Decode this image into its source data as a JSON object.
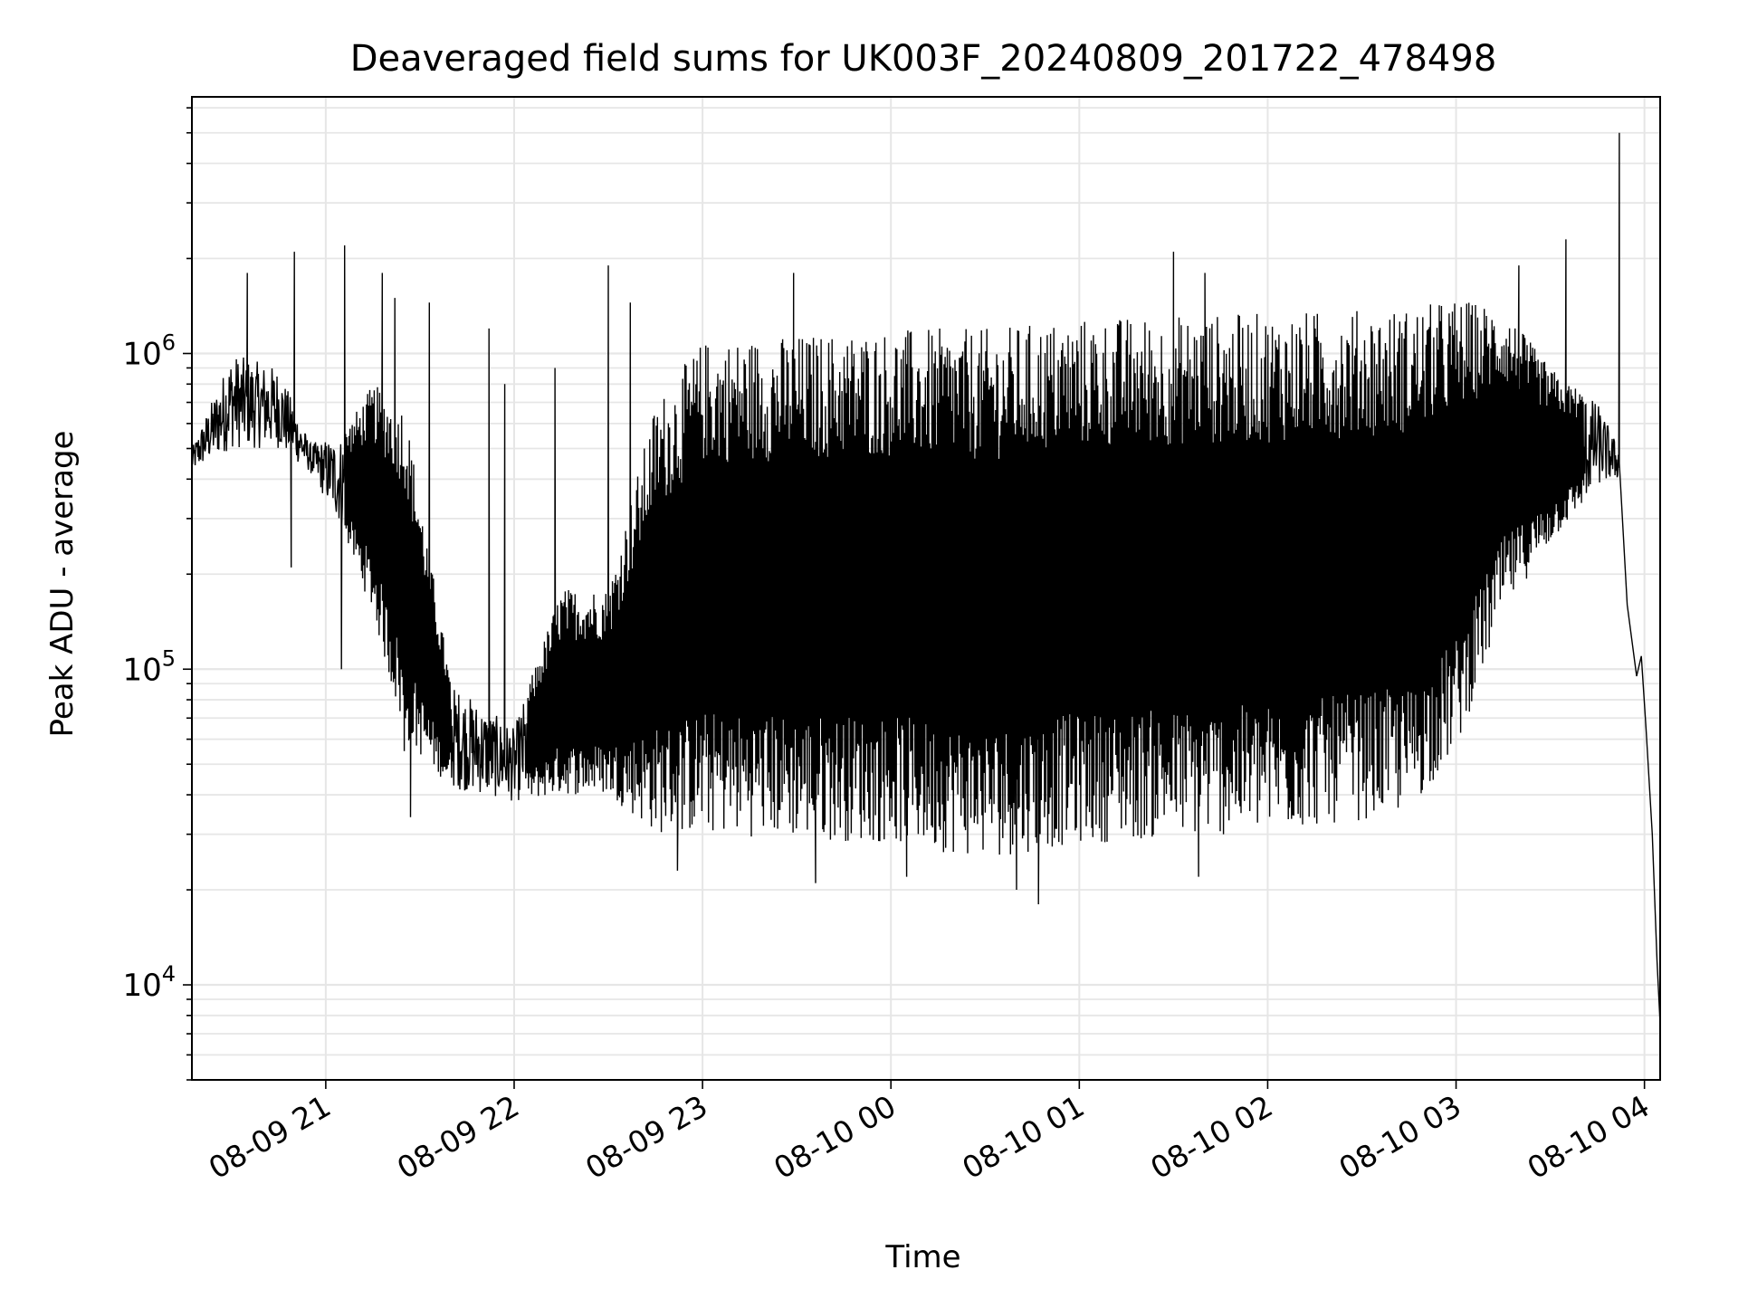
{
  "chart_data": {
    "type": "line",
    "title": "Deaveraged field sums for UK003F_20240809_201722_478498",
    "xlabel": "Time",
    "ylabel": "Peak ADU - average",
    "yscale": "log",
    "ylim": [
      5000,
      6500000
    ],
    "xlim": [
      "2024-08-09T20:17:22",
      "2024-08-10T04:05:00"
    ],
    "grid": true,
    "line_color": "#000000",
    "grid_color": "#e6e6e6",
    "x_ticks": [
      {
        "value": "2024-08-09T21:00:00",
        "label": "08-09 21"
      },
      {
        "value": "2024-08-09T22:00:00",
        "label": "08-09 22"
      },
      {
        "value": "2024-08-09T23:00:00",
        "label": "08-09 23"
      },
      {
        "value": "2024-08-10T00:00:00",
        "label": "08-10 00"
      },
      {
        "value": "2024-08-10T01:00:00",
        "label": "08-10 01"
      },
      {
        "value": "2024-08-10T02:00:00",
        "label": "08-10 02"
      },
      {
        "value": "2024-08-10T03:00:00",
        "label": "08-10 03"
      },
      {
        "value": "2024-08-10T04:00:00",
        "label": "08-10 04"
      }
    ],
    "y_ticks": [
      {
        "value": 10000,
        "base": "10",
        "exp": "4"
      },
      {
        "value": 100000,
        "base": "10",
        "exp": "5"
      },
      {
        "value": 1000000,
        "base": "10",
        "exp": "6"
      }
    ],
    "series": [
      {
        "color": "#000000",
        "envelope": [
          {
            "t": "2024-08-09T20:17:22",
            "low": 420000,
            "high": 500000
          },
          {
            "t": "2024-08-09T20:30:00",
            "low": 500000,
            "high": 1000000
          },
          {
            "t": "2024-08-09T20:45:00",
            "low": 500000,
            "high": 900000
          },
          {
            "t": "2024-08-09T20:55:00",
            "low": 420000,
            "high": 520000
          },
          {
            "t": "2024-08-09T21:05:00",
            "low": 280000,
            "high": 550000
          },
          {
            "t": "2024-08-09T21:15:00",
            "low": 150000,
            "high": 800000
          },
          {
            "t": "2024-08-09T21:25:00",
            "low": 60000,
            "high": 700000
          },
          {
            "t": "2024-08-09T21:40:00",
            "low": 42000,
            "high": 90000
          },
          {
            "t": "2024-08-09T22:00:00",
            "low": 38000,
            "high": 65000
          },
          {
            "t": "2024-08-09T22:15:00",
            "low": 40000,
            "high": 180000
          },
          {
            "t": "2024-08-09T22:30:00",
            "low": 40000,
            "high": 180000
          },
          {
            "t": "2024-08-09T22:45:00",
            "low": 30000,
            "high": 700000
          },
          {
            "t": "2024-08-09T23:00:00",
            "low": 30000,
            "high": 1100000
          },
          {
            "t": "2024-08-10T00:00:00",
            "low": 28000,
            "high": 1200000
          },
          {
            "t": "2024-08-10T00:30:00",
            "low": 25000,
            "high": 1200000
          },
          {
            "t": "2024-08-10T01:00:00",
            "low": 28000,
            "high": 1300000
          },
          {
            "t": "2024-08-10T02:00:00",
            "low": 30000,
            "high": 1350000
          },
          {
            "t": "2024-08-10T02:45:00",
            "low": 35000,
            "high": 1400000
          },
          {
            "t": "2024-08-10T03:00:00",
            "low": 55000,
            "high": 1500000
          },
          {
            "t": "2024-08-10T03:15:00",
            "low": 150000,
            "high": 1400000
          },
          {
            "t": "2024-08-10T03:30:00",
            "low": 250000,
            "high": 900000
          },
          {
            "t": "2024-08-10T03:45:00",
            "low": 380000,
            "high": 700000
          },
          {
            "t": "2024-08-10T03:52:00",
            "low": 400000,
            "high": 500000
          }
        ],
        "spikes": [
          {
            "t": "2024-08-09T20:35:00",
            "value": 1800000
          },
          {
            "t": "2024-08-09T20:50:00",
            "value": 2100000
          },
          {
            "t": "2024-08-09T20:49:00",
            "value": 210000
          },
          {
            "t": "2024-08-09T21:05:00",
            "value": 100000
          },
          {
            "t": "2024-08-09T21:06:00",
            "value": 2200000
          },
          {
            "t": "2024-08-09T21:18:00",
            "value": 1800000
          },
          {
            "t": "2024-08-09T21:22:00",
            "value": 1500000
          },
          {
            "t": "2024-08-09T21:25:00",
            "value": 55000
          },
          {
            "t": "2024-08-09T21:27:00",
            "value": 34000
          },
          {
            "t": "2024-08-09T21:33:00",
            "value": 1450000
          },
          {
            "t": "2024-08-09T21:52:00",
            "value": 1200000
          },
          {
            "t": "2024-08-09T21:57:00",
            "value": 800000
          },
          {
            "t": "2024-08-09T22:13:00",
            "value": 900000
          },
          {
            "t": "2024-08-09T22:30:00",
            "value": 1900000
          },
          {
            "t": "2024-08-09T22:37:00",
            "value": 1450000
          },
          {
            "t": "2024-08-09T22:52:00",
            "value": 23000
          },
          {
            "t": "2024-08-09T23:29:00",
            "value": 1800000
          },
          {
            "t": "2024-08-09T23:36:00",
            "value": 21000
          },
          {
            "t": "2024-08-10T00:05:00",
            "value": 22000
          },
          {
            "t": "2024-08-10T00:40:00",
            "value": 20000
          },
          {
            "t": "2024-08-10T00:47:00",
            "value": 18000
          },
          {
            "t": "2024-08-10T01:30:00",
            "value": 2100000
          },
          {
            "t": "2024-08-10T01:38:00",
            "value": 22000
          },
          {
            "t": "2024-08-10T01:40:00",
            "value": 1800000
          },
          {
            "t": "2024-08-10T03:20:00",
            "value": 1900000
          },
          {
            "t": "2024-08-10T03:35:00",
            "value": 2300000
          },
          {
            "t": "2024-08-10T03:52:00",
            "value": 5000000
          }
        ],
        "tail": [
          {
            "t": "2024-08-10T03:52:00",
            "value": 450000
          },
          {
            "t": "2024-08-10T03:54:30",
            "value": 160000
          },
          {
            "t": "2024-08-10T03:57:30",
            "value": 95000
          },
          {
            "t": "2024-08-10T03:59:00",
            "value": 110000
          },
          {
            "t": "2024-08-10T04:00:30",
            "value": 65000
          },
          {
            "t": "2024-08-10T04:02:30",
            "value": 30000
          },
          {
            "t": "2024-08-10T04:04:00",
            "value": 12000
          },
          {
            "t": "2024-08-10T04:05:00",
            "value": 7500
          }
        ]
      }
    ]
  }
}
